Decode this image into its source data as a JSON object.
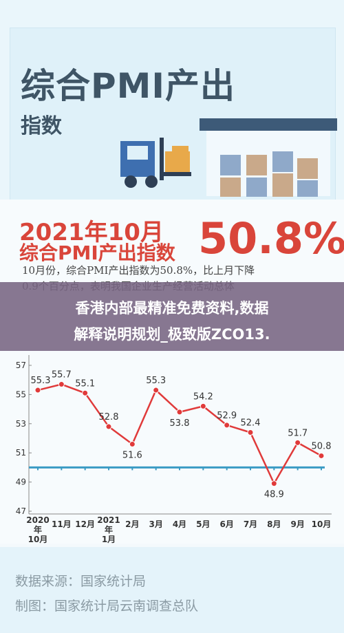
{
  "header": {
    "title": "综合PMI产出",
    "subtitle": "指数"
  },
  "headline": {
    "date": "2021年10月",
    "label": "综合PMI产出指数",
    "value": "50.8%"
  },
  "paragraph": [
    "10月份，综合PMI产出指数为50.8%，比上月下降",
    "0.9个百分点，表明我国企业生产经营活动总体"
  ],
  "banner": [
    "香港内部最精准免费资料,数据",
    "解释说明规划_极致版ZCO13."
  ],
  "chart_data": {
    "type": "line",
    "categories": [
      "2020年\n10月",
      "11月",
      "12月",
      "2021年\n1月",
      "2月",
      "3月",
      "4月",
      "5月",
      "6月",
      "7月",
      "8月",
      "9月",
      "10月"
    ],
    "values": [
      55.3,
      55.7,
      55.1,
      52.8,
      51.6,
      55.3,
      53.8,
      54.2,
      52.9,
      52.4,
      48.9,
      51.7,
      50.8
    ],
    "color": "#e03a3a",
    "reference": 50,
    "reference_color": "#3a9bc4",
    "ylim": [
      47,
      57
    ],
    "yticks": [
      47,
      49,
      51,
      53,
      55,
      57
    ]
  },
  "footer": [
    "数据来源：国家统计局",
    "制图：国家统计局云南调查总队"
  ]
}
